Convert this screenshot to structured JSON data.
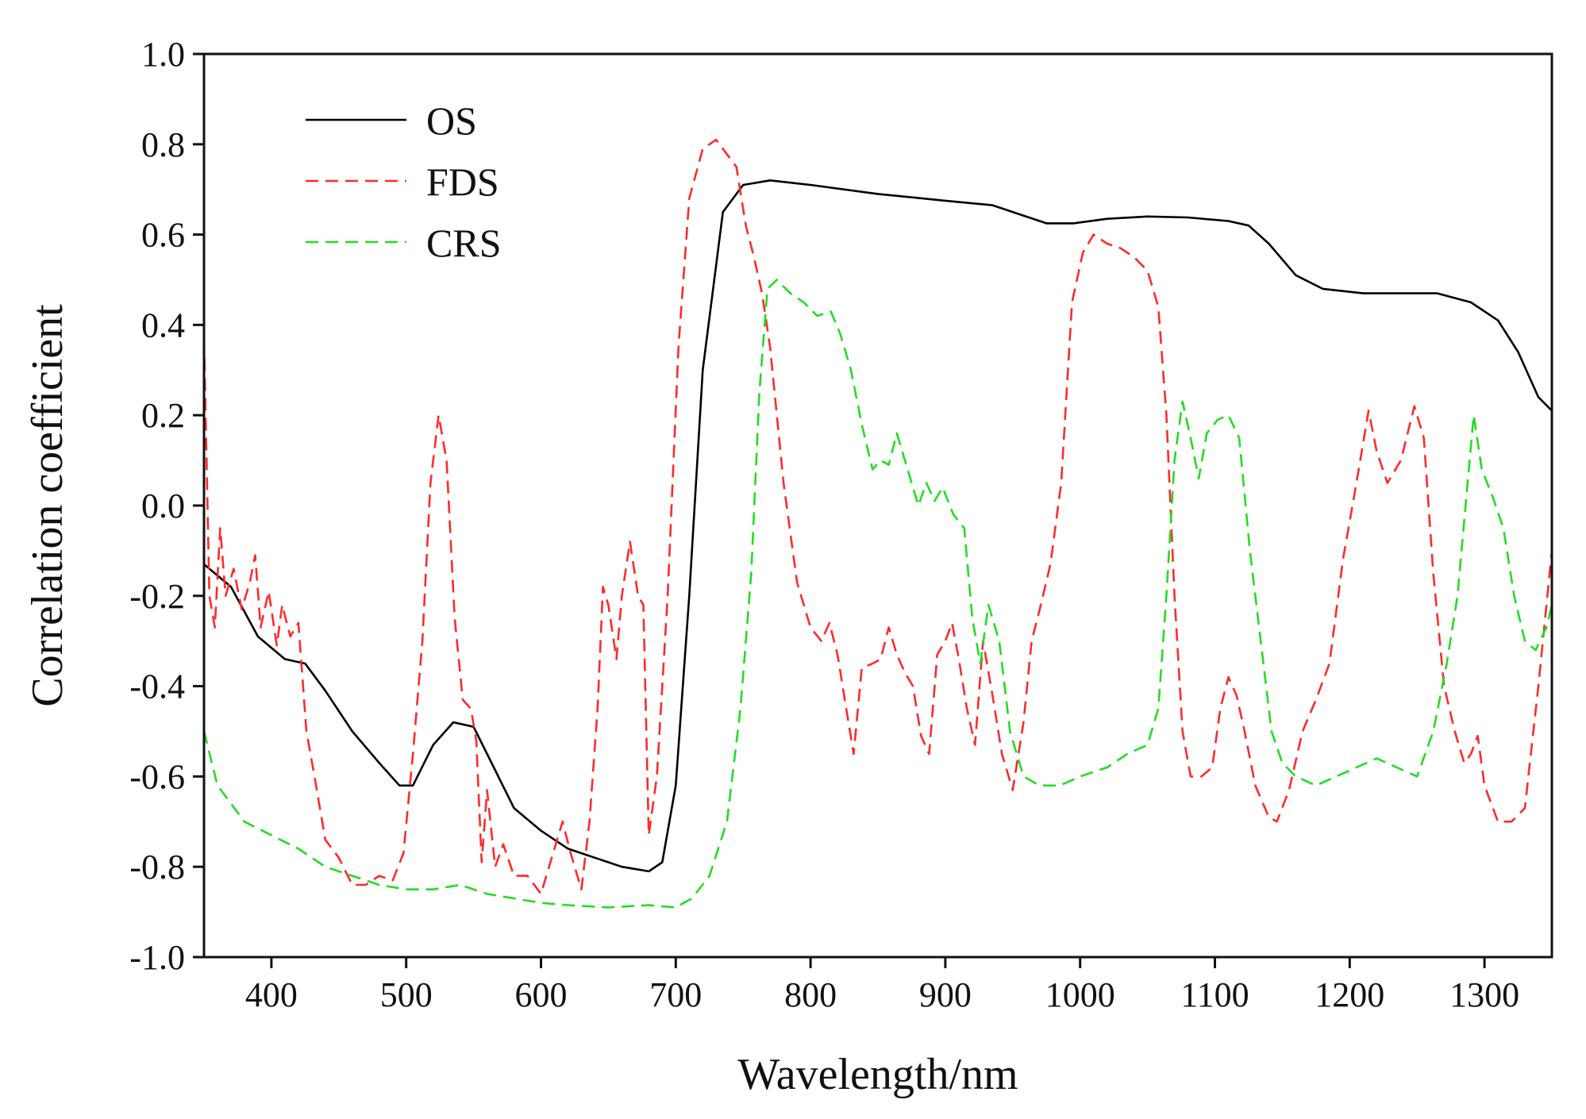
{
  "chart_data": {
    "type": "line",
    "title": "",
    "xlabel": "Wavelength/nm",
    "ylabel": "Correlation coefficient",
    "xlim": [
      350,
      1350
    ],
    "ylim": [
      -1.0,
      1.0
    ],
    "grid": false,
    "legend_position": "top-left",
    "x_ticks": [
      400,
      500,
      600,
      700,
      800,
      900,
      1000,
      1100,
      1200,
      1300
    ],
    "x_tick_labels": [
      "400",
      "500",
      "600",
      "700",
      "800",
      "900",
      "1000",
      "1100",
      "1200",
      "1300"
    ],
    "y_ticks": [
      -1.0,
      -0.8,
      -0.6,
      -0.4,
      -0.2,
      0.0,
      0.2,
      0.4,
      0.6,
      0.8,
      1.0
    ],
    "y_tick_labels": [
      "-1.0",
      "-0.8",
      "-0.6",
      "-0.4",
      "-0.2",
      "0.0",
      "0.2",
      "0.4",
      "0.6",
      "0.8",
      "1.0"
    ],
    "series": [
      {
        "name": "OS",
        "color": "#000000",
        "dash": "solid",
        "points": [
          [
            350,
            -0.13
          ],
          [
            370,
            -0.18
          ],
          [
            390,
            -0.29
          ],
          [
            410,
            -0.34
          ],
          [
            425,
            -0.35
          ],
          [
            440,
            -0.41
          ],
          [
            460,
            -0.5
          ],
          [
            480,
            -0.57
          ],
          [
            495,
            -0.62
          ],
          [
            505,
            -0.62
          ],
          [
            520,
            -0.53
          ],
          [
            535,
            -0.48
          ],
          [
            550,
            -0.49
          ],
          [
            565,
            -0.58
          ],
          [
            580,
            -0.67
          ],
          [
            600,
            -0.72
          ],
          [
            620,
            -0.76
          ],
          [
            640,
            -0.78
          ],
          [
            660,
            -0.8
          ],
          [
            680,
            -0.81
          ],
          [
            690,
            -0.79
          ],
          [
            700,
            -0.62
          ],
          [
            710,
            -0.2
          ],
          [
            720,
            0.3
          ],
          [
            735,
            0.65
          ],
          [
            750,
            0.71
          ],
          [
            770,
            0.72
          ],
          [
            800,
            0.71
          ],
          [
            850,
            0.69
          ],
          [
            900,
            0.675
          ],
          [
            935,
            0.665
          ],
          [
            955,
            0.645
          ],
          [
            975,
            0.625
          ],
          [
            995,
            0.625
          ],
          [
            1020,
            0.635
          ],
          [
            1050,
            0.64
          ],
          [
            1080,
            0.638
          ],
          [
            1110,
            0.63
          ],
          [
            1125,
            0.62
          ],
          [
            1140,
            0.58
          ],
          [
            1160,
            0.51
          ],
          [
            1180,
            0.48
          ],
          [
            1210,
            0.47
          ],
          [
            1240,
            0.47
          ],
          [
            1265,
            0.47
          ],
          [
            1290,
            0.45
          ],
          [
            1310,
            0.41
          ],
          [
            1325,
            0.34
          ],
          [
            1340,
            0.24
          ],
          [
            1350,
            0.21
          ]
        ]
      },
      {
        "name": "FDS",
        "color": "#ff2a2a",
        "dash": "dashed",
        "points": [
          [
            350,
            0.37
          ],
          [
            354,
            -0.2
          ],
          [
            358,
            -0.27
          ],
          [
            362,
            -0.05
          ],
          [
            366,
            -0.2
          ],
          [
            372,
            -0.14
          ],
          [
            378,
            -0.23
          ],
          [
            384,
            -0.17
          ],
          [
            388,
            -0.11
          ],
          [
            392,
            -0.27
          ],
          [
            398,
            -0.19
          ],
          [
            404,
            -0.31
          ],
          [
            408,
            -0.22
          ],
          [
            414,
            -0.29
          ],
          [
            420,
            -0.26
          ],
          [
            426,
            -0.5
          ],
          [
            432,
            -0.6
          ],
          [
            440,
            -0.74
          ],
          [
            450,
            -0.78
          ],
          [
            460,
            -0.84
          ],
          [
            470,
            -0.84
          ],
          [
            480,
            -0.82
          ],
          [
            490,
            -0.83
          ],
          [
            498,
            -0.77
          ],
          [
            505,
            -0.55
          ],
          [
            512,
            -0.3
          ],
          [
            518,
            0.05
          ],
          [
            524,
            0.2
          ],
          [
            530,
            0.1
          ],
          [
            536,
            -0.25
          ],
          [
            542,
            -0.43
          ],
          [
            548,
            -0.45
          ],
          [
            552,
            -0.52
          ],
          [
            556,
            -0.79
          ],
          [
            560,
            -0.63
          ],
          [
            566,
            -0.8
          ],
          [
            572,
            -0.75
          ],
          [
            580,
            -0.82
          ],
          [
            590,
            -0.82
          ],
          [
            600,
            -0.86
          ],
          [
            608,
            -0.78
          ],
          [
            616,
            -0.7
          ],
          [
            622,
            -0.77
          ],
          [
            630,
            -0.85
          ],
          [
            636,
            -0.7
          ],
          [
            642,
            -0.45
          ],
          [
            646,
            -0.18
          ],
          [
            650,
            -0.22
          ],
          [
            656,
            -0.34
          ],
          [
            660,
            -0.2
          ],
          [
            666,
            -0.08
          ],
          [
            672,
            -0.2
          ],
          [
            676,
            -0.22
          ],
          [
            680,
            -0.73
          ],
          [
            686,
            -0.6
          ],
          [
            694,
            -0.2
          ],
          [
            702,
            0.35
          ],
          [
            710,
            0.68
          ],
          [
            720,
            0.79
          ],
          [
            730,
            0.81
          ],
          [
            745,
            0.75
          ],
          [
            752,
            0.62
          ],
          [
            758,
            0.55
          ],
          [
            764,
            0.47
          ],
          [
            770,
            0.35
          ],
          [
            780,
            0.05
          ],
          [
            790,
            -0.17
          ],
          [
            800,
            -0.27
          ],
          [
            808,
            -0.3
          ],
          [
            814,
            -0.26
          ],
          [
            820,
            -0.33
          ],
          [
            826,
            -0.44
          ],
          [
            832,
            -0.55
          ],
          [
            838,
            -0.36
          ],
          [
            846,
            -0.35
          ],
          [
            852,
            -0.34
          ],
          [
            858,
            -0.27
          ],
          [
            864,
            -0.33
          ],
          [
            870,
            -0.37
          ],
          [
            876,
            -0.4
          ],
          [
            882,
            -0.51
          ],
          [
            888,
            -0.55
          ],
          [
            894,
            -0.33
          ],
          [
            900,
            -0.3
          ],
          [
            905,
            -0.26
          ],
          [
            910,
            -0.34
          ],
          [
            916,
            -0.45
          ],
          [
            922,
            -0.53
          ],
          [
            928,
            -0.3
          ],
          [
            935,
            -0.42
          ],
          [
            942,
            -0.55
          ],
          [
            950,
            -0.63
          ],
          [
            958,
            -0.48
          ],
          [
            964,
            -0.3
          ],
          [
            970,
            -0.23
          ],
          [
            978,
            -0.13
          ],
          [
            986,
            0.05
          ],
          [
            994,
            0.45
          ],
          [
            1002,
            0.56
          ],
          [
            1010,
            0.6
          ],
          [
            1020,
            0.58
          ],
          [
            1030,
            0.57
          ],
          [
            1040,
            0.55
          ],
          [
            1050,
            0.52
          ],
          [
            1058,
            0.44
          ],
          [
            1064,
            0.2
          ],
          [
            1070,
            -0.2
          ],
          [
            1076,
            -0.5
          ],
          [
            1082,
            -0.6
          ],
          [
            1090,
            -0.6
          ],
          [
            1098,
            -0.58
          ],
          [
            1104,
            -0.45
          ],
          [
            1110,
            -0.38
          ],
          [
            1116,
            -0.42
          ],
          [
            1122,
            -0.5
          ],
          [
            1130,
            -0.62
          ],
          [
            1140,
            -0.69
          ],
          [
            1146,
            -0.7
          ],
          [
            1155,
            -0.63
          ],
          [
            1165,
            -0.5
          ],
          [
            1175,
            -0.43
          ],
          [
            1185,
            -0.35
          ],
          [
            1195,
            -0.12
          ],
          [
            1205,
            0.05
          ],
          [
            1214,
            0.21
          ],
          [
            1220,
            0.12
          ],
          [
            1228,
            0.05
          ],
          [
            1238,
            0.1
          ],
          [
            1248,
            0.22
          ],
          [
            1255,
            0.15
          ],
          [
            1262,
            -0.15
          ],
          [
            1270,
            -0.4
          ],
          [
            1278,
            -0.5
          ],
          [
            1285,
            -0.57
          ],
          [
            1290,
            -0.55
          ],
          [
            1295,
            -0.51
          ],
          [
            1300,
            -0.62
          ],
          [
            1310,
            -0.7
          ],
          [
            1320,
            -0.7
          ],
          [
            1330,
            -0.67
          ],
          [
            1340,
            -0.4
          ],
          [
            1345,
            -0.25
          ],
          [
            1350,
            -0.1
          ]
        ]
      },
      {
        "name": "CRS",
        "color": "#22dd22",
        "dash": "dashed",
        "points": [
          [
            350,
            -0.5
          ],
          [
            360,
            -0.62
          ],
          [
            380,
            -0.7
          ],
          [
            400,
            -0.73
          ],
          [
            420,
            -0.76
          ],
          [
            440,
            -0.8
          ],
          [
            460,
            -0.82
          ],
          [
            480,
            -0.84
          ],
          [
            500,
            -0.85
          ],
          [
            520,
            -0.85
          ],
          [
            540,
            -0.84
          ],
          [
            560,
            -0.86
          ],
          [
            580,
            -0.87
          ],
          [
            600,
            -0.88
          ],
          [
            620,
            -0.885
          ],
          [
            650,
            -0.89
          ],
          [
            680,
            -0.885
          ],
          [
            700,
            -0.89
          ],
          [
            712,
            -0.87
          ],
          [
            725,
            -0.82
          ],
          [
            738,
            -0.7
          ],
          [
            748,
            -0.45
          ],
          [
            756,
            -0.15
          ],
          [
            762,
            0.25
          ],
          [
            768,
            0.48
          ],
          [
            775,
            0.5
          ],
          [
            785,
            0.47
          ],
          [
            795,
            0.45
          ],
          [
            805,
            0.42
          ],
          [
            815,
            0.43
          ],
          [
            822,
            0.38
          ],
          [
            830,
            0.3
          ],
          [
            838,
            0.18
          ],
          [
            846,
            0.08
          ],
          [
            852,
            0.1
          ],
          [
            858,
            0.09
          ],
          [
            864,
            0.16
          ],
          [
            870,
            0.1
          ],
          [
            876,
            0.04
          ],
          [
            880,
            0.0
          ],
          [
            886,
            0.05
          ],
          [
            892,
            0.01
          ],
          [
            898,
            0.04
          ],
          [
            906,
            -0.02
          ],
          [
            914,
            -0.05
          ],
          [
            920,
            -0.25
          ],
          [
            926,
            -0.35
          ],
          [
            932,
            -0.22
          ],
          [
            940,
            -0.3
          ],
          [
            948,
            -0.5
          ],
          [
            958,
            -0.6
          ],
          [
            970,
            -0.62
          ],
          [
            985,
            -0.62
          ],
          [
            1000,
            -0.6
          ],
          [
            1020,
            -0.58
          ],
          [
            1035,
            -0.55
          ],
          [
            1050,
            -0.53
          ],
          [
            1058,
            -0.45
          ],
          [
            1064,
            -0.2
          ],
          [
            1070,
            0.1
          ],
          [
            1076,
            0.23
          ],
          [
            1082,
            0.15
          ],
          [
            1088,
            0.06
          ],
          [
            1094,
            0.16
          ],
          [
            1102,
            0.19
          ],
          [
            1110,
            0.2
          ],
          [
            1118,
            0.15
          ],
          [
            1126,
            -0.1
          ],
          [
            1134,
            -0.3
          ],
          [
            1142,
            -0.5
          ],
          [
            1150,
            -0.57
          ],
          [
            1160,
            -0.6
          ],
          [
            1175,
            -0.62
          ],
          [
            1190,
            -0.6
          ],
          [
            1205,
            -0.58
          ],
          [
            1220,
            -0.56
          ],
          [
            1235,
            -0.58
          ],
          [
            1250,
            -0.6
          ],
          [
            1262,
            -0.5
          ],
          [
            1272,
            -0.35
          ],
          [
            1280,
            -0.2
          ],
          [
            1286,
            0.0
          ],
          [
            1292,
            0.2
          ],
          [
            1298,
            0.08
          ],
          [
            1306,
            0.02
          ],
          [
            1314,
            -0.05
          ],
          [
            1322,
            -0.2
          ],
          [
            1330,
            -0.3
          ],
          [
            1338,
            -0.32
          ],
          [
            1346,
            -0.27
          ],
          [
            1350,
            -0.22
          ]
        ]
      }
    ]
  }
}
